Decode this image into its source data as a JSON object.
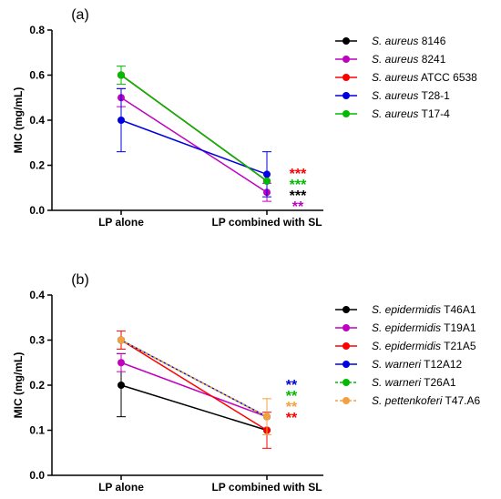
{
  "chart_data": [
    {
      "type": "line",
      "panel_label": "(a)",
      "ylabel": "MIC (mg/mL)",
      "ylim": [
        0.0,
        0.8
      ],
      "yticks": [
        "0.0",
        "0.2",
        "0.4",
        "0.6",
        "0.8"
      ],
      "categories": [
        "LP alone",
        "LP combined with SL"
      ],
      "legend_position": "right",
      "series": [
        {
          "italic": "S. aureus",
          "suffix": " 8146",
          "color": "#000000",
          "values": [
            0.6,
            0.13
          ],
          "err": [
            0.0,
            0.0
          ],
          "dashed": false
        },
        {
          "italic": "S. aureus",
          "suffix": " 8241",
          "color": "#c000c0",
          "values": [
            0.5,
            0.08
          ],
          "err": [
            0.04,
            0.04
          ],
          "dashed": false
        },
        {
          "italic": "S. aureus",
          "suffix": " ATCC 6538",
          "color": "#ff0000",
          "values": [
            0.6,
            0.13
          ],
          "err": [
            0.0,
            0.0
          ],
          "dashed": false
        },
        {
          "italic": "S. aureus",
          "suffix": " T28-1",
          "color": "#0000e0",
          "values": [
            0.4,
            0.16
          ],
          "err": [
            0.14,
            0.1
          ],
          "dashed": false
        },
        {
          "italic": "S. aureus",
          "suffix": " T17-4",
          "color": "#00bb00",
          "values": [
            0.6,
            0.13
          ],
          "err": [
            0.04,
            0.0
          ],
          "dashed": false
        }
      ],
      "significance": [
        {
          "text": "***",
          "color": "#ff0000"
        },
        {
          "text": "***",
          "color": "#00bb00"
        },
        {
          "text": "***",
          "color": "#000000"
        },
        {
          "text": "**",
          "color": "#c000c0"
        }
      ]
    },
    {
      "type": "line",
      "panel_label": "(b)",
      "ylabel": "MIC (mg/mL)",
      "ylim": [
        0.0,
        0.4
      ],
      "yticks": [
        "0.0",
        "0.1",
        "0.2",
        "0.3",
        "0.4"
      ],
      "categories": [
        "LP alone",
        "LP combined with SL"
      ],
      "legend_position": "right",
      "series": [
        {
          "italic": "S. epidermidis",
          "suffix": " T46A1",
          "color": "#000000",
          "values": [
            0.2,
            0.1
          ],
          "err": [
            0.07,
            0.0
          ],
          "dashed": false
        },
        {
          "italic": "S. epidermidis",
          "suffix": " T19A1",
          "color": "#c000c0",
          "values": [
            0.25,
            0.13
          ],
          "err": [
            0.02,
            0.0
          ],
          "dashed": false
        },
        {
          "italic": "S. epidermidis",
          "suffix": " T21A5",
          "color": "#ff0000",
          "values": [
            0.3,
            0.1
          ],
          "err": [
            0.02,
            0.04
          ],
          "dashed": false
        },
        {
          "italic": "S. warneri",
          "suffix": " T12A12",
          "color": "#0000e0",
          "values": [
            0.3,
            0.13
          ],
          "err": [
            0.0,
            0.0
          ],
          "dashed": false
        },
        {
          "italic": "S. warneri",
          "suffix": " T26A1",
          "color": "#00bb00",
          "values": [
            0.3,
            0.13
          ],
          "err": [
            0.0,
            0.0
          ],
          "dashed": true
        },
        {
          "italic": "S. pettenkoferi",
          "suffix": " T47.A6",
          "color": "#f5a040",
          "values": [
            0.3,
            0.13
          ],
          "err": [
            0.0,
            0.04
          ],
          "dashed": true
        }
      ],
      "significance": [
        {
          "text": "**",
          "color": "#0000e0"
        },
        {
          "text": "**",
          "color": "#00bb00"
        },
        {
          "text": "**",
          "color": "#f5a040"
        },
        {
          "text": "**",
          "color": "#ff0000"
        }
      ]
    }
  ]
}
